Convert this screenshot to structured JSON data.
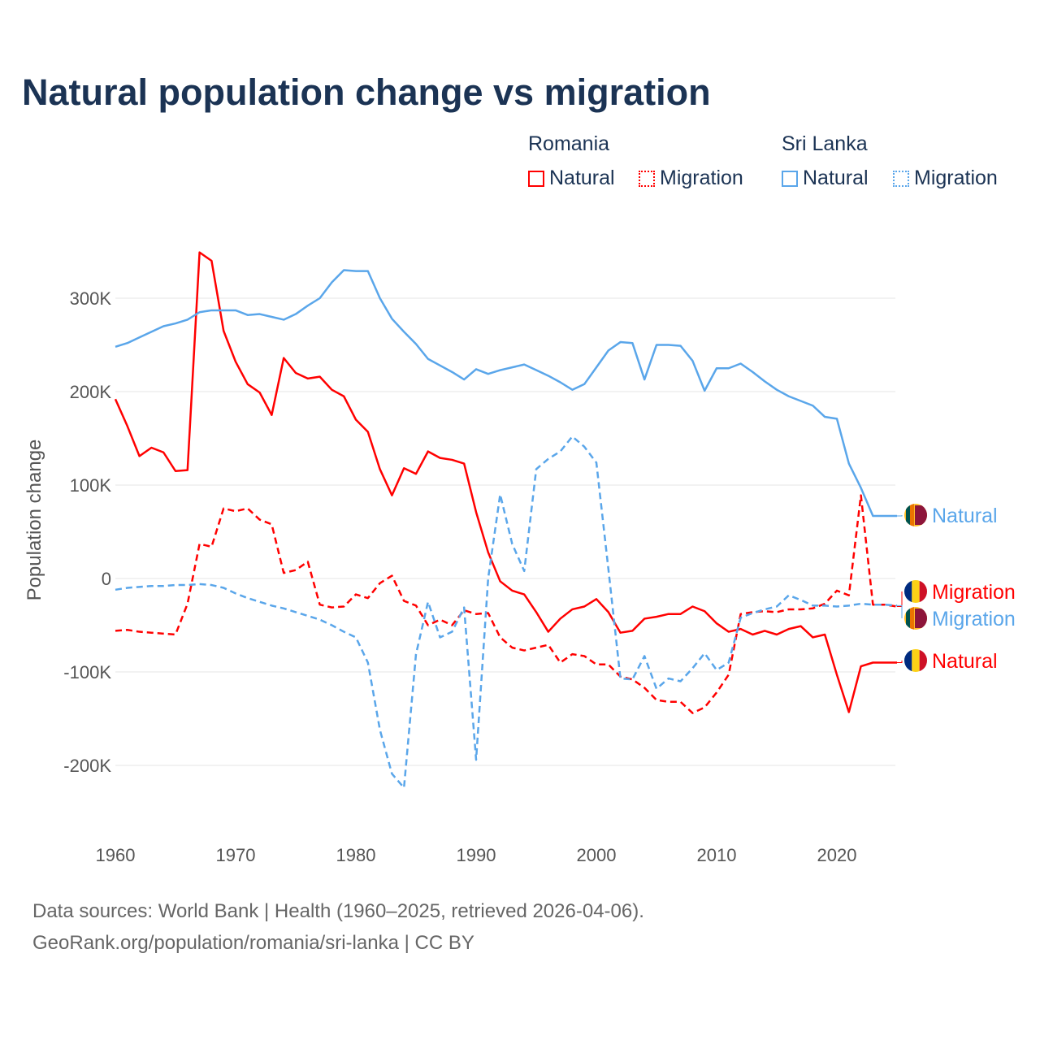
{
  "chart_data": {
    "type": "line",
    "title": "Natural population change vs migration",
    "xlabel": "",
    "ylabel": "Population change",
    "xlim": [
      1960,
      2025
    ],
    "ylim": [
      -250000,
      360000
    ],
    "grid": true,
    "x_ticks": [
      1960,
      1970,
      1980,
      1990,
      2000,
      2010,
      2020
    ],
    "x_tick_labels": [
      "1960",
      "1970",
      "1980",
      "1990",
      "2000",
      "2010",
      "2020"
    ],
    "y_ticks": [
      300000,
      200000,
      100000,
      0,
      -100000,
      -200000
    ],
    "y_tick_labels": [
      "300K",
      "200K",
      "100K",
      "0",
      "-100K",
      "-200K"
    ],
    "legend": {
      "placement": "top-right",
      "groups": [
        {
          "country": "Romania",
          "items": [
            "Natural",
            "Migration"
          ],
          "color": "#ff0000"
        },
        {
          "country": "Sri Lanka",
          "items": [
            "Natural",
            "Migration"
          ],
          "color": "#5aa6ea"
        }
      ]
    },
    "x_start": 1960,
    "series": [
      {
        "name": "Romania Natural",
        "label": "Natural",
        "color": "#ff0000",
        "dash": false,
        "values": [
          192,
          163,
          131,
          140,
          135,
          115,
          116,
          349,
          340,
          265,
          232,
          208,
          199,
          175,
          236,
          220,
          214,
          216,
          202,
          195,
          170,
          157,
          117,
          89,
          118,
          112,
          136,
          129,
          127,
          123,
          71,
          28,
          -3,
          -13,
          -17,
          -36,
          -57,
          -43,
          -33,
          -30,
          -22,
          -36,
          -58,
          -56,
          -43,
          -41,
          -38,
          -38,
          -30,
          -35,
          -48,
          -57,
          -54,
          -60,
          -56,
          -60,
          -54,
          -51,
          -63,
          -60,
          -103,
          -143,
          -94,
          -90,
          -90,
          -90
        ]
      },
      {
        "name": "Romania Migration",
        "label": "Migration",
        "color": "#ff0000",
        "dash": true,
        "values": [
          -56,
          -55,
          -57,
          -58,
          -59,
          -60,
          -27,
          37,
          34,
          75,
          72,
          75,
          63,
          58,
          6,
          9,
          18,
          -28,
          -31,
          -30,
          -17,
          -21,
          -5,
          3,
          -24,
          -29,
          -50,
          -44,
          -50,
          -34,
          -38,
          -37,
          -63,
          -74,
          -77,
          -74,
          -71,
          -90,
          -81,
          -83,
          -92,
          -92,
          -105,
          -108,
          -117,
          -130,
          -132,
          -132,
          -144,
          -138,
          -122,
          -103,
          -38,
          -36,
          -35,
          -36,
          -33,
          -33,
          -32,
          -27,
          -13,
          -18,
          89,
          -28,
          -28,
          -30
        ]
      },
      {
        "name": "Sri Lanka Natural",
        "label": "Natural",
        "color": "#5aa6ea",
        "dash": false,
        "values": [
          248,
          252,
          258,
          264,
          270,
          273,
          277,
          285,
          287,
          287,
          287,
          282,
          283,
          280,
          277,
          283,
          292,
          300,
          317,
          330,
          329,
          329,
          300,
          278,
          264,
          251,
          235,
          228,
          221,
          213,
          224,
          219,
          223,
          226,
          229,
          223,
          217,
          210,
          202,
          208,
          226,
          244,
          253,
          252,
          213,
          250,
          250,
          249,
          233,
          201,
          225,
          225,
          230,
          221,
          211,
          202,
          195,
          190,
          185,
          173,
          171,
          123,
          97,
          67,
          67,
          67
        ]
      },
      {
        "name": "Sri Lanka Migration",
        "label": "Migration",
        "color": "#5aa6ea",
        "dash": true,
        "values": [
          -12,
          -10,
          -9,
          -8,
          -8,
          -7,
          -7,
          -6,
          -7,
          -10,
          -16,
          -21,
          -25,
          -29,
          -32,
          -36,
          -40,
          -44,
          -50,
          -57,
          -63,
          -90,
          -162,
          -209,
          -224,
          -81,
          -25,
          -63,
          -57,
          -31,
          -194,
          0,
          90,
          37,
          8,
          117,
          128,
          136,
          152,
          141,
          124,
          10,
          -107,
          -108,
          -83,
          -118,
          -107,
          -110,
          -96,
          -80,
          -98,
          -90,
          -42,
          -37,
          -33,
          -30,
          -18,
          -23,
          -29,
          -29,
          -30,
          -29,
          -27,
          -28,
          -28,
          -29
        ]
      }
    ],
    "value_unit": "thousands"
  },
  "legend_labels": {
    "romania": "Romania",
    "sri_lanka": "Sri Lanka",
    "natural": "Natural",
    "migration": "Migration"
  },
  "source": {
    "line1": "Data sources: World Bank | Health (1960–2025, retrieved 2026-04-06).",
    "line2": "GeoRank.org/population/romania/sri-lanka | CC BY"
  }
}
